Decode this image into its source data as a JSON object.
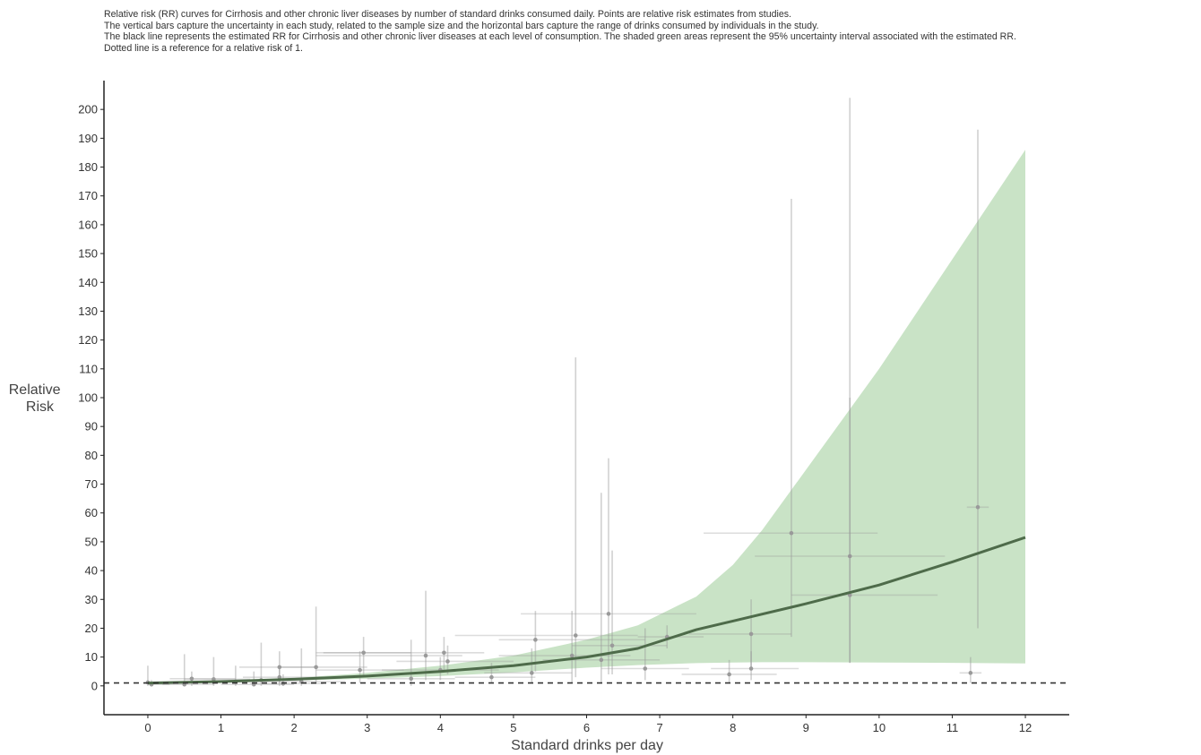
{
  "caption": [
    "Relative risk (RR) curves for Cirrhosis and other chronic liver diseases by number of standard drinks consumed daily. Points are relative risk estimates from studies.",
    "The vertical bars capture the uncertainty in each study, related to the sample size and the horizontal bars capture the range of drinks consumed by individuals in the study.",
    "The black line represents the estimated RR for Cirrhosis and other chronic liver diseases at each level of consumption. The shaded green areas represent the 95% uncertainty interval associated with the estimated RR.",
    "Dotted line is a reference for a relative risk of 1."
  ],
  "colors": {
    "band": "#c9e3c6",
    "curve": "#4e6b4a",
    "study": "#9a9a9a",
    "study_bar": "#d4d4d4",
    "axis": "#222222",
    "reference": "#333333"
  },
  "chart_data": {
    "type": "line",
    "xlabel": "Standard drinks per day",
    "ylabel_lines": [
      "Relative",
      "Risk"
    ],
    "xlim": [
      -0.6,
      12.6
    ],
    "ylim": [
      -10,
      210
    ],
    "x_ticks": [
      0,
      1,
      2,
      3,
      4,
      5,
      6,
      7,
      8,
      9,
      10,
      11,
      12
    ],
    "y_ticks": [
      0,
      10,
      20,
      30,
      40,
      50,
      60,
      70,
      80,
      90,
      100,
      110,
      120,
      130,
      140,
      150,
      160,
      170,
      180,
      190,
      200
    ],
    "reference_line": 1,
    "curve": {
      "x": [
        0,
        1,
        2,
        3,
        4,
        5,
        6,
        6.7,
        7.5,
        8,
        9,
        10,
        11,
        12
      ],
      "y": [
        1,
        1.5,
        2.3,
        3.4,
        5,
        7,
        10,
        13,
        19.5,
        22.5,
        28.5,
        35,
        43,
        51.5
      ]
    },
    "band": {
      "x": [
        0,
        1,
        2,
        3,
        4,
        5,
        6,
        6.7,
        7.5,
        8,
        8.4,
        9,
        10,
        11,
        12
      ],
      "upper": [
        1.1,
        1.7,
        2.7,
        4.5,
        7,
        10.5,
        16,
        21,
        31,
        42,
        54,
        75,
        110,
        148,
        186
      ],
      "lower": [
        0.9,
        1.3,
        1.9,
        2.5,
        3.4,
        4.7,
        6.3,
        7.2,
        7.9,
        8.1,
        8.2,
        8.2,
        8.1,
        8,
        7.8
      ]
    },
    "studies": [
      {
        "x": 0,
        "y": 1.2,
        "x_low": 0,
        "x_high": 0,
        "y_low": 0,
        "y_high": 7
      },
      {
        "x": 0.05,
        "y": 0.5,
        "x_low": 0,
        "x_high": 0.3,
        "y_low": 0,
        "y_high": 2
      },
      {
        "x": 0.5,
        "y": 0.5,
        "x_low": 0.2,
        "x_high": 0.9,
        "y_low": 0,
        "y_high": 11
      },
      {
        "x": 0.6,
        "y": 2.5,
        "x_low": 0.3,
        "x_high": 1.2,
        "y_low": 0,
        "y_high": 5
      },
      {
        "x": 0.9,
        "y": 2.3,
        "x_low": 0.5,
        "x_high": 1.4,
        "y_low": 0,
        "y_high": 10
      },
      {
        "x": 1.2,
        "y": 1.5,
        "x_low": 0.8,
        "x_high": 1.6,
        "y_low": 0,
        "y_high": 7
      },
      {
        "x": 1.45,
        "y": 0.5,
        "x_low": 1,
        "x_high": 2,
        "y_low": 0,
        "y_high": 5
      },
      {
        "x": 1.55,
        "y": 2,
        "x_low": 1.2,
        "x_high": 2.1,
        "y_low": 0,
        "y_high": 15
      },
      {
        "x": 1.8,
        "y": 6.5,
        "x_low": 1.25,
        "x_high": 2.3,
        "y_low": 1,
        "y_high": 12
      },
      {
        "x": 1.8,
        "y": 3,
        "x_low": 1.3,
        "x_high": 2.4,
        "y_low": 0,
        "y_high": 6
      },
      {
        "x": 1.85,
        "y": 0.8,
        "x_low": 1.4,
        "x_high": 2.4,
        "y_low": 0,
        "y_high": 4
      },
      {
        "x": 2.1,
        "y": 1.5,
        "x_low": 1.6,
        "x_high": 2.7,
        "y_low": 0,
        "y_high": 13
      },
      {
        "x": 2.3,
        "y": 6.5,
        "x_low": 1.8,
        "x_high": 3,
        "y_low": 1,
        "y_high": 27.5
      },
      {
        "x": 2.9,
        "y": 5.5,
        "x_low": 2.3,
        "x_high": 3.5,
        "y_low": 1,
        "y_high": 12
      },
      {
        "x": 2.95,
        "y": 11.5,
        "x_low": 2.4,
        "x_high": 3.6,
        "y_low": 3,
        "y_high": 17
      },
      {
        "x": 3.8,
        "y": 10.5,
        "x_low": 2.3,
        "x_high": 4.3,
        "y_low": 2,
        "y_high": 33
      },
      {
        "x": 3.6,
        "y": 2.5,
        "x_low": 3,
        "x_high": 4.2,
        "y_low": 0,
        "y_high": 16
      },
      {
        "x": 4.05,
        "y": 11.5,
        "x_low": 2.3,
        "x_high": 4.6,
        "y_low": 5,
        "y_high": 17
      },
      {
        "x": 4,
        "y": 5.5,
        "x_low": 3.2,
        "x_high": 4.8,
        "y_low": 2,
        "y_high": 10
      },
      {
        "x": 4.1,
        "y": 8.5,
        "x_low": 3.4,
        "x_high": 5,
        "y_low": 4,
        "y_high": 14
      },
      {
        "x": 4.7,
        "y": 3,
        "x_low": 4.2,
        "x_high": 5.3,
        "y_low": 1,
        "y_high": 8
      },
      {
        "x": 5.25,
        "y": 4.5,
        "x_low": 4.6,
        "x_high": 5.8,
        "y_low": 1,
        "y_high": 13
      },
      {
        "x": 5.3,
        "y": 16,
        "x_low": 4.8,
        "x_high": 6.8,
        "y_low": 5,
        "y_high": 26
      },
      {
        "x": 5.85,
        "y": 17.5,
        "x_low": 4.2,
        "x_high": 6.7,
        "y_low": 3,
        "y_high": 114
      },
      {
        "x": 5.8,
        "y": 10.5,
        "x_low": 4.8,
        "x_high": 6.6,
        "y_low": 1,
        "y_high": 26
      },
      {
        "x": 6.2,
        "y": 9,
        "x_low": 5.4,
        "x_high": 7,
        "y_low": 1,
        "y_high": 67
      },
      {
        "x": 6.3,
        "y": 25,
        "x_low": 5.1,
        "x_high": 7.5,
        "y_low": 4,
        "y_high": 79
      },
      {
        "x": 6.35,
        "y": 14,
        "x_low": 5.8,
        "x_high": 7.1,
        "y_low": 4,
        "y_high": 47
      },
      {
        "x": 6.8,
        "y": 6,
        "x_low": 6.2,
        "x_high": 7.4,
        "y_low": 2,
        "y_high": 20
      },
      {
        "x": 7.1,
        "y": 17,
        "x_low": 6.7,
        "x_high": 7.6,
        "y_low": 13,
        "y_high": 21
      },
      {
        "x": 7.95,
        "y": 4,
        "x_low": 7.3,
        "x_high": 8.6,
        "y_low": 1,
        "y_high": 9
      },
      {
        "x": 8.25,
        "y": 18,
        "x_low": 7.4,
        "x_high": 8.8,
        "y_low": 6,
        "y_high": 30
      },
      {
        "x": 8.25,
        "y": 6,
        "x_low": 7.7,
        "x_high": 8.9,
        "y_low": 2,
        "y_high": 12
      },
      {
        "x": 8.8,
        "y": 53,
        "x_low": 7.6,
        "x_high": 9.98,
        "y_low": 17,
        "y_high": 169
      },
      {
        "x": 9.6,
        "y": 45,
        "x_low": 8.3,
        "x_high": 10.9,
        "y_low": 8,
        "y_high": 204
      },
      {
        "x": 9.6,
        "y": 31.5,
        "x_low": 8.8,
        "x_high": 10.8,
        "y_low": 8,
        "y_high": 100
      },
      {
        "x": 11.25,
        "y": 4.5,
        "x_low": 11.1,
        "x_high": 11.4,
        "y_low": 1,
        "y_high": 10
      },
      {
        "x": 11.35,
        "y": 62,
        "x_low": 11.2,
        "x_high": 11.5,
        "y_low": 20,
        "y_high": 193
      }
    ]
  }
}
